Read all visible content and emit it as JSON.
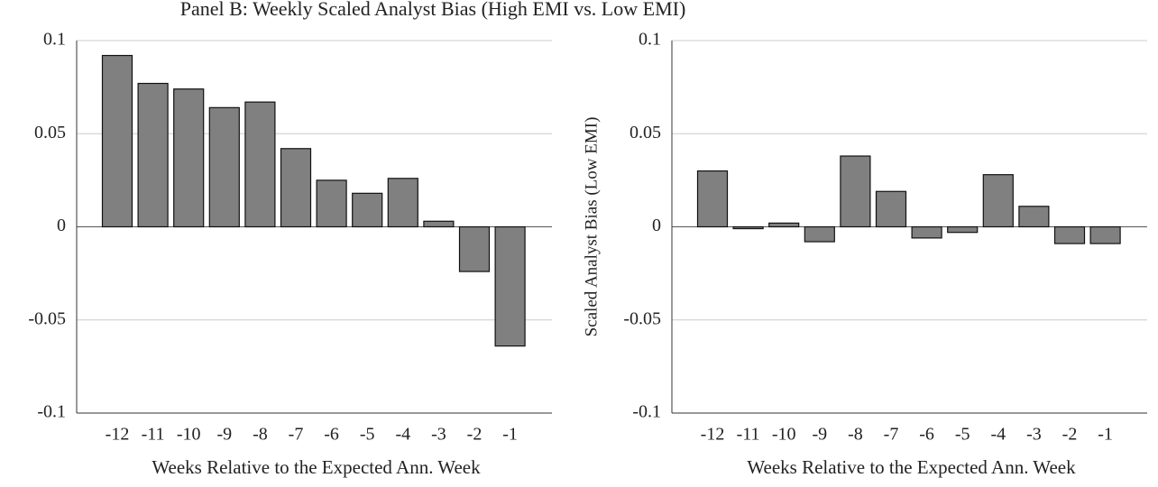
{
  "title": "Panel B: Weekly Scaled Analyst Bias (High EMI vs. Low EMI)",
  "chart_data": [
    {
      "type": "bar",
      "categories": [
        "-12",
        "-11",
        "-10",
        "-9",
        "-8",
        "-7",
        "-6",
        "-5",
        "-4",
        "-3",
        "-2",
        "-1"
      ],
      "values": [
        0.092,
        0.077,
        0.074,
        0.064,
        0.067,
        0.042,
        0.025,
        0.018,
        0.026,
        0.003,
        -0.024,
        -0.064
      ],
      "color": "#808080",
      "xlabel": "Weeks Relative to the Expected Ann. Week",
      "ylim": [
        -0.1,
        0.1
      ],
      "yticks": [
        -0.1,
        -0.05,
        0,
        0.05,
        0.1
      ],
      "grid": true
    },
    {
      "type": "bar",
      "categories": [
        "-12",
        "-11",
        "-10",
        "-9",
        "-8",
        "-7",
        "-6",
        "-5",
        "-4",
        "-3",
        "-2",
        "-1"
      ],
      "values": [
        0.03,
        -0.001,
        0.002,
        -0.008,
        0.038,
        0.019,
        -0.006,
        -0.003,
        0.028,
        0.011,
        -0.009,
        -0.009
      ],
      "color": "#808080",
      "xlabel": "Weeks Relative to the Expected Ann. Week",
      "ylabel": "Scaled Analyst Bias (Low EMI)",
      "ylim": [
        -0.1,
        0.1
      ],
      "yticks": [
        -0.1,
        -0.05,
        0,
        0.05,
        0.1
      ],
      "grid": true
    }
  ]
}
